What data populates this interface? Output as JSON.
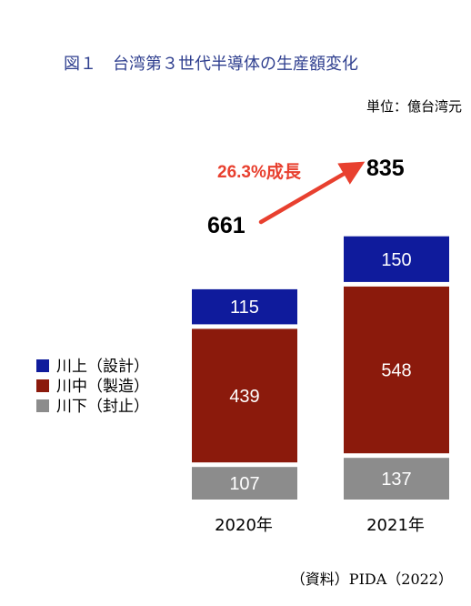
{
  "chart_data": {
    "type": "bar",
    "stacked": true,
    "title": "図１　台湾第３世代半導体の生産額変化",
    "unit": "単位：億台湾元",
    "categories": [
      "2020年",
      "2021年"
    ],
    "series": [
      {
        "name": "川下（封止）",
        "values": [
          107,
          137
        ],
        "color": "#8c8c8c"
      },
      {
        "name": "川中（製造）",
        "values": [
          439,
          548
        ],
        "color": "#8b1a0c"
      },
      {
        "name": "川上（設計）",
        "values": [
          115,
          150
        ],
        "color": "#0f1b9c"
      }
    ],
    "totals": [
      "661",
      "835"
    ],
    "annotation": "26.3%成長",
    "annotation_color": "#e8402f",
    "title_color": "#2f3f8f",
    "source": "（資料）PIDA（2022）",
    "legend_position": "left"
  }
}
